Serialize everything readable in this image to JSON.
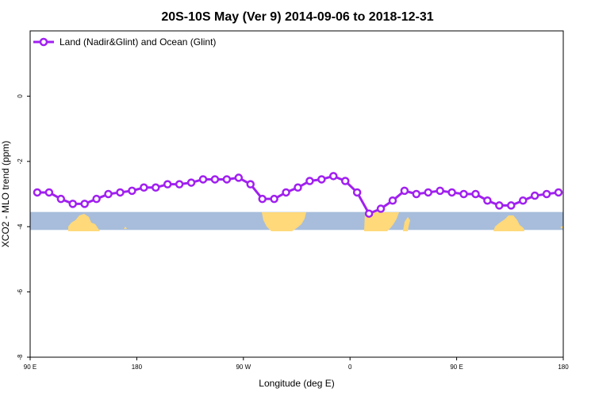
{
  "chart_data": {
    "type": "line",
    "title": "20S-10S May (Ver 9)   2014-09-06 to 2018-12-31",
    "xlabel": "Longitude (deg E)",
    "ylabel": "XCO2 - MLO trend (ppm)",
    "xlim": [
      90,
      540
    ],
    "ylim": [
      -8,
      2
    ],
    "x_ticks": [
      {
        "value": 90,
        "label": "90 E"
      },
      {
        "value": 180,
        "label": "180"
      },
      {
        "value": 270,
        "label": "90 W"
      },
      {
        "value": 360,
        "label": "0"
      },
      {
        "value": 450,
        "label": "90 E"
      },
      {
        "value": 540,
        "label": "180"
      }
    ],
    "y_ticks": [
      {
        "value": 0,
        "label": "0"
      },
      {
        "value": -2,
        "label": "-2"
      },
      {
        "value": -4,
        "label": "-4"
      },
      {
        "value": -6,
        "label": "-6"
      },
      {
        "value": -8,
        "label": "-8"
      }
    ],
    "grid": false,
    "legend_position": "top-left",
    "series": [
      {
        "name": "Land (Nadir&Glint) and Ocean (Glint)",
        "color": "#a020f0",
        "x": [
          96,
          106,
          116,
          126,
          136,
          146,
          156,
          166,
          176,
          186,
          196,
          206,
          216,
          226,
          236,
          246,
          256,
          266,
          276,
          286,
          296,
          306,
          316,
          326,
          336,
          346,
          356,
          366,
          376,
          386,
          396,
          406,
          416,
          426,
          436,
          446,
          456,
          466,
          476,
          486,
          496,
          506,
          516,
          526,
          536
        ],
        "y": [
          -2.95,
          -2.95,
          -3.15,
          -3.3,
          -3.3,
          -3.15,
          -3.0,
          -2.95,
          -2.9,
          -2.8,
          -2.8,
          -2.7,
          -2.7,
          -2.65,
          -2.55,
          -2.55,
          -2.55,
          -2.5,
          -2.7,
          -3.15,
          -3.15,
          -2.95,
          -2.8,
          -2.6,
          -2.55,
          -2.45,
          -2.6,
          -2.95,
          -3.6,
          -3.45,
          -3.2,
          -2.9,
          -3.0,
          -2.95,
          -2.9,
          -2.95,
          -3.0,
          -3.0,
          -3.2,
          -3.35,
          -3.35,
          -3.2,
          -3.05,
          -3.0,
          -2.95
        ]
      }
    ],
    "map_strip": {
      "y_range": [
        -4.1,
        -3.55
      ],
      "ocean_color": "#a7bddb",
      "land_color": "#ffd97a"
    }
  }
}
